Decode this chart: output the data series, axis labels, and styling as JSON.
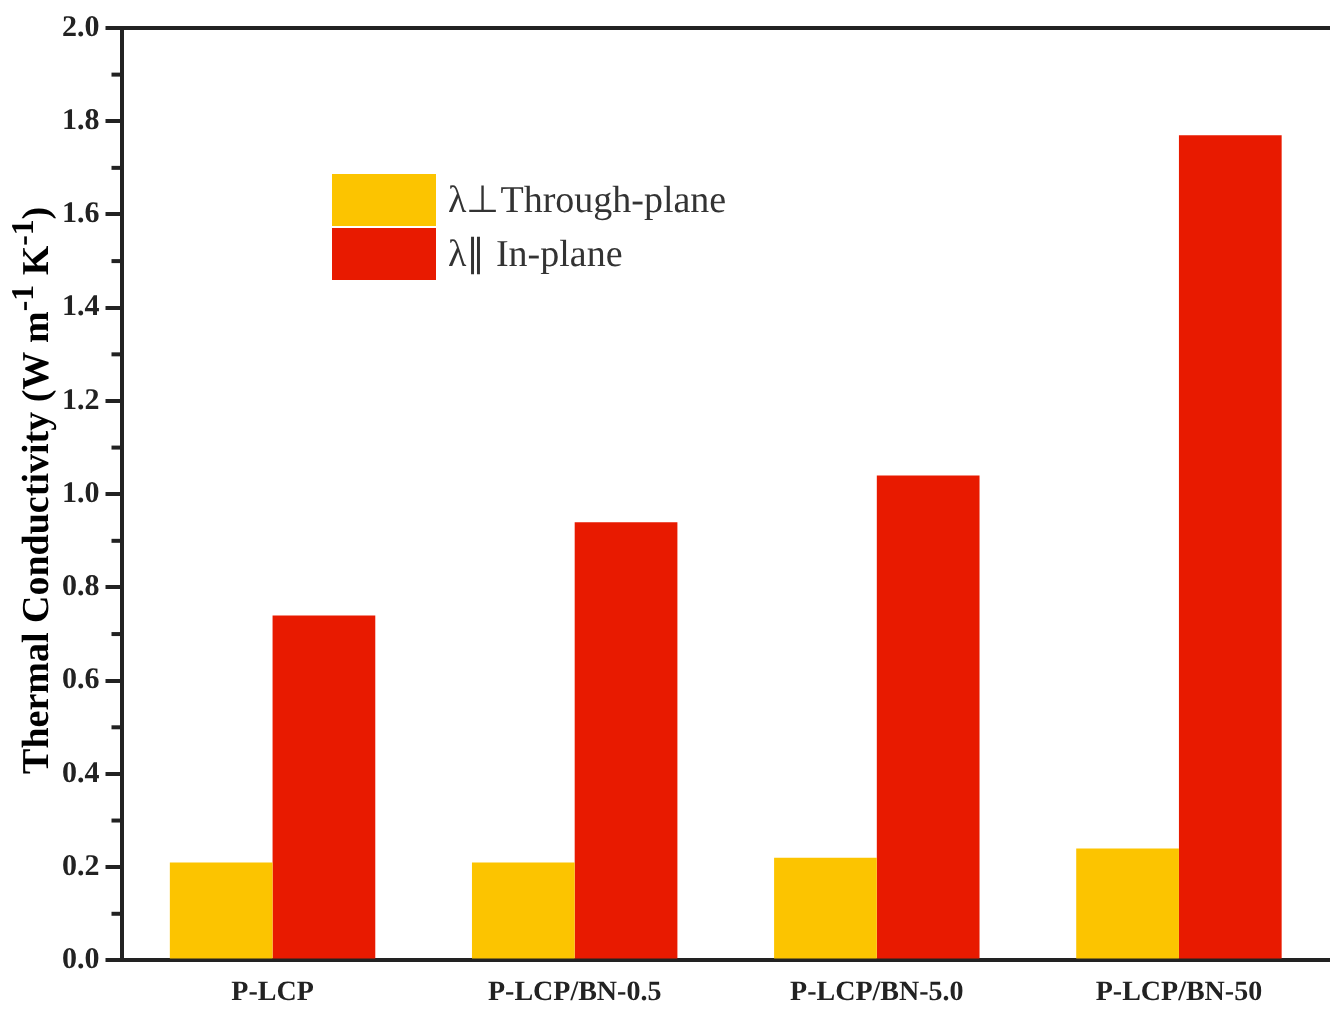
{
  "chart_data": {
    "type": "bar",
    "ylabel": "Thermal Conductivity (W m$^{-1}$ K$^{-1}$)",
    "categories": [
      "P-LCP",
      "P-LCP/BN-0.5",
      "P-LCP/BN-5.0",
      "P-LCP/BN-50"
    ],
    "series": [
      {
        "name": "λ⊥Through-plane",
        "color": "#fcc400",
        "values": [
          0.21,
          0.21,
          0.22,
          0.24
        ]
      },
      {
        "name": "λ∥ In-plane",
        "color": "#e81a00",
        "values": [
          0.74,
          0.94,
          1.04,
          1.77
        ]
      }
    ],
    "ylim": [
      0,
      2.0
    ],
    "yticks": [
      {
        "value": 0,
        "label": "0.0"
      },
      0.2,
      0.4,
      0.6,
      0.8,
      {
        "value": 1,
        "label": "1.0"
      },
      1.2,
      1.4,
      1.6,
      1.8,
      {
        "value": 2,
        "label": "2.0"
      }
    ],
    "grid": false,
    "legend": "top left"
  }
}
